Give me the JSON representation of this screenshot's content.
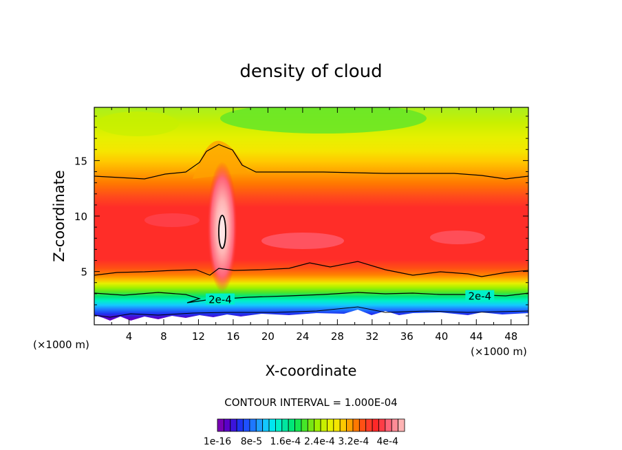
{
  "chart_data": {
    "type": "heatmap",
    "title": "density of cloud",
    "xlabel": "X-coordinate",
    "ylabel": "Z-coordinate",
    "x_unit_label": "(×1000 m)",
    "x_unit_label_right": "(×1000 m)",
    "xlim": [
      0,
      50
    ],
    "ylim": [
      0.2,
      19.8
    ],
    "x_ticks": [
      4,
      8,
      12,
      16,
      20,
      24,
      28,
      32,
      36,
      40,
      44,
      48
    ],
    "y_ticks": [
      5,
      10,
      15
    ],
    "contour_interval_text": "CONTOUR INTERVAL = 1.000E-04",
    "contour_labels": [
      {
        "text": "2e-4",
        "x": 14.5,
        "y": 2.4
      },
      {
        "text": "2e-4",
        "x": 44.4,
        "y": 2.7
      }
    ],
    "colorbar": {
      "colors": [
        "#7800b4",
        "#5a00c8",
        "#3c14dc",
        "#1e32f0",
        "#1e50ff",
        "#1e78ff",
        "#1ea0ff",
        "#14c8ff",
        "#00e6f0",
        "#00f0c8",
        "#00e6a0",
        "#00e678",
        "#14e650",
        "#46e628",
        "#78e614",
        "#a0f000",
        "#c8f000",
        "#e6f000",
        "#f5e600",
        "#ffc800",
        "#ffa000",
        "#ff7800",
        "#ff5014",
        "#ff3c28",
        "#ff2828",
        "#ff3c46",
        "#ff6478",
        "#ff8c96",
        "#ffb4b4"
      ],
      "tick_labels": [
        "1e-16",
        "8e-5",
        "1.6e-4",
        "2.4e-4",
        "3.2e-4",
        "4e-4"
      ],
      "tick_values": [
        0,
        8e-05,
        0.00016,
        0.00024,
        0.00032,
        0.0004
      ],
      "max_value": 0.00044
    }
  }
}
